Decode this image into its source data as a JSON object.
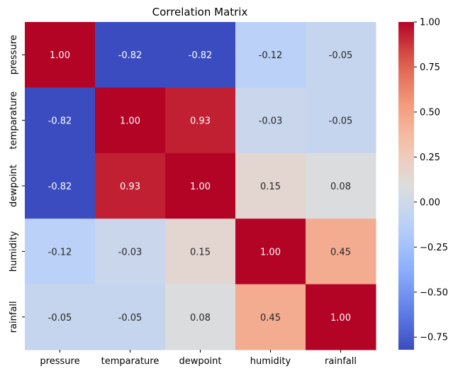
{
  "chart_data": {
    "type": "heatmap",
    "title": "Correlation Matrix",
    "row_labels": [
      "pressure",
      "temparature",
      "dewpoint",
      "humidity",
      "rainfall"
    ],
    "col_labels": [
      "pressure",
      "temparature",
      "dewpoint",
      "humidity",
      "rainfall"
    ],
    "values": [
      [
        1.0,
        -0.82,
        -0.82,
        -0.12,
        -0.05
      ],
      [
        -0.82,
        1.0,
        0.93,
        -0.03,
        -0.05
      ],
      [
        -0.82,
        0.93,
        1.0,
        0.15,
        0.08
      ],
      [
        -0.12,
        -0.03,
        0.15,
        1.0,
        0.45
      ],
      [
        -0.05,
        -0.05,
        0.08,
        0.45,
        1.0
      ]
    ],
    "annotation_format": "0.00",
    "colormap": "coolwarm",
    "color_range": [
      -0.82,
      1.0
    ],
    "colorbar_ticks": [
      1.0,
      0.75,
      0.5,
      0.25,
      0.0,
      -0.25,
      -0.5,
      -0.75
    ],
    "colorbar_tick_labels": [
      "1.00",
      "0.75",
      "0.50",
      "0.25",
      "0.00",
      "−0.25",
      "−0.50",
      "−0.75"
    ],
    "grid": false,
    "legend": "colorbar-right"
  }
}
